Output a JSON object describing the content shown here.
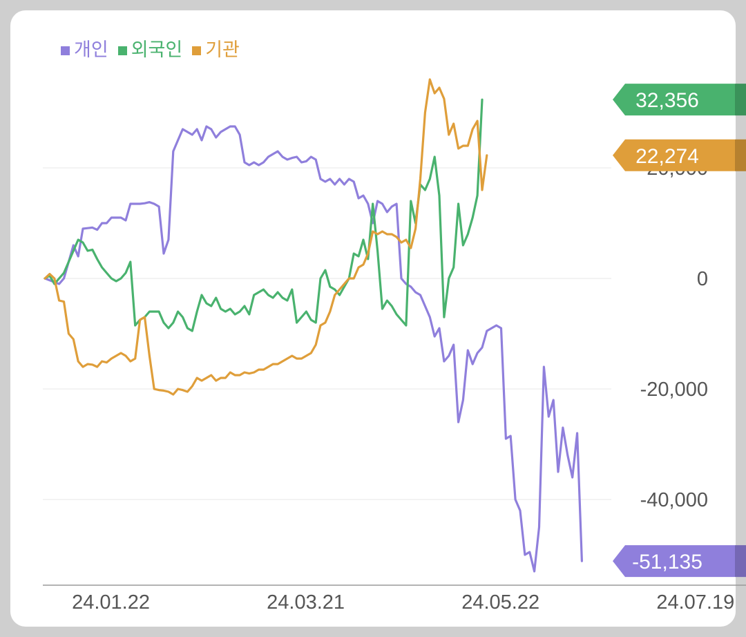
{
  "colors": {
    "individual": "#8f7fdc",
    "foreign": "#49b26e",
    "institution": "#df9e3a",
    "grid": "#ececec",
    "axis": "#9a9a9a",
    "tick_text": "#555555"
  },
  "legend": [
    {
      "key": "individual",
      "label": "개인"
    },
    {
      "key": "foreign",
      "label": "외국인"
    },
    {
      "key": "institution",
      "label": "기관"
    }
  ],
  "tags": [
    {
      "key": "foreign",
      "label": "32,356",
      "value": 32356
    },
    {
      "key": "institution",
      "label": "22,274",
      "value": 22274
    },
    {
      "key": "individual",
      "label": "-51,135",
      "value": -51135
    }
  ],
  "chart_data": {
    "type": "line",
    "xlabel": "",
    "ylabel": "",
    "ylim": [
      -54000,
      36000
    ],
    "yticks": [
      {
        "value": 20000,
        "label": "20,000"
      },
      {
        "value": 0,
        "label": "0"
      },
      {
        "value": -20000,
        "label": "-20,000"
      },
      {
        "value": -40000,
        "label": "-40,000"
      }
    ],
    "xticks": [
      {
        "index": 4,
        "label": "24.01.22"
      },
      {
        "index": 45,
        "label": "24.03.21"
      },
      {
        "index": 86,
        "label": "24.05.22"
      },
      {
        "index": 127,
        "label": "24.07.19"
      }
    ],
    "grid": true,
    "legend_position": "top-left",
    "n_points": 149,
    "series": [
      {
        "name": "개인",
        "key": "individual",
        "points": [
          [
            0,
            0
          ],
          [
            3,
            -1000
          ],
          [
            4,
            0
          ],
          [
            6,
            6000
          ],
          [
            7,
            4000
          ],
          [
            8,
            9000
          ],
          [
            10,
            9200
          ],
          [
            11,
            8800
          ],
          [
            12,
            10000
          ],
          [
            13,
            10000
          ],
          [
            14,
            11000
          ],
          [
            16,
            11000
          ],
          [
            17,
            10500
          ],
          [
            18,
            13500
          ],
          [
            20,
            13500
          ],
          [
            21,
            13600
          ],
          [
            22,
            13800
          ],
          [
            23,
            13500
          ],
          [
            24,
            13000
          ],
          [
            25,
            4500
          ],
          [
            26,
            7000
          ],
          [
            27,
            23000
          ],
          [
            28,
            25000
          ],
          [
            29,
            27000
          ],
          [
            31,
            26000
          ],
          [
            32,
            27000
          ],
          [
            33,
            25000
          ],
          [
            34,
            27500
          ],
          [
            35,
            27000
          ],
          [
            36,
            25500
          ],
          [
            37,
            26500
          ],
          [
            38,
            27000
          ],
          [
            39,
            27500
          ],
          [
            40,
            27500
          ],
          [
            41,
            26000
          ],
          [
            42,
            21000
          ],
          [
            43,
            20500
          ],
          [
            44,
            21000
          ],
          [
            45,
            20500
          ],
          [
            46,
            21000
          ],
          [
            47,
            22000
          ],
          [
            48,
            22500
          ],
          [
            49,
            23000
          ],
          [
            50,
            22000
          ],
          [
            51,
            21500
          ],
          [
            52,
            21800
          ],
          [
            53,
            22000
          ],
          [
            54,
            21000
          ],
          [
            55,
            21200
          ],
          [
            56,
            22000
          ],
          [
            57,
            21500
          ],
          [
            58,
            18000
          ],
          [
            59,
            17500
          ],
          [
            60,
            18000
          ],
          [
            61,
            17000
          ],
          [
            62,
            18000
          ],
          [
            63,
            17000
          ],
          [
            64,
            18000
          ],
          [
            65,
            17500
          ],
          [
            66,
            14500
          ],
          [
            67,
            15000
          ],
          [
            68,
            13500
          ],
          [
            69,
            10000
          ],
          [
            70,
            14000
          ],
          [
            71,
            13500
          ],
          [
            72,
            12000
          ],
          [
            73,
            13000
          ],
          [
            74,
            13500
          ],
          [
            75,
            0
          ],
          [
            76,
            -1000
          ],
          [
            77,
            -1500
          ],
          [
            78,
            -2500
          ],
          [
            79,
            -3000
          ],
          [
            80,
            -5000
          ],
          [
            81,
            -7000
          ],
          [
            82,
            -10500
          ],
          [
            83,
            -9000
          ],
          [
            84,
            -15000
          ],
          [
            85,
            -14000
          ],
          [
            86,
            -12000
          ],
          [
            87,
            -26000
          ],
          [
            88,
            -22000
          ],
          [
            89,
            -13000
          ],
          [
            90,
            -15500
          ],
          [
            91,
            -13500
          ],
          [
            92,
            -12500
          ],
          [
            93,
            -9500
          ],
          [
            94,
            -9000
          ],
          [
            95,
            -8500
          ],
          [
            96,
            -9000
          ],
          [
            97,
            -29000
          ],
          [
            98,
            -28500
          ],
          [
            99,
            -40000
          ],
          [
            100,
            -42000
          ],
          [
            101,
            -50000
          ],
          [
            102,
            -49500
          ],
          [
            103,
            -53000
          ],
          [
            104,
            -45000
          ],
          [
            105,
            -16000
          ],
          [
            106,
            -25000
          ],
          [
            107,
            -22000
          ],
          [
            108,
            -35000
          ],
          [
            109,
            -27000
          ],
          [
            110,
            -32000
          ],
          [
            111,
            -36000
          ],
          [
            112,
            -28000
          ],
          [
            113,
            -51135
          ]
        ]
      },
      {
        "name": "외국인",
        "key": "foreign",
        "points": [
          [
            0,
            0
          ],
          [
            1,
            500
          ],
          [
            2,
            -1000
          ],
          [
            3,
            0
          ],
          [
            4,
            1000
          ],
          [
            6,
            5000
          ],
          [
            7,
            7000
          ],
          [
            8,
            6500
          ],
          [
            9,
            5000
          ],
          [
            10,
            5200
          ],
          [
            11,
            3500
          ],
          [
            12,
            2000
          ],
          [
            13,
            1000
          ],
          [
            14,
            0
          ],
          [
            15,
            -500
          ],
          [
            16,
            0
          ],
          [
            17,
            1000
          ],
          [
            18,
            3000
          ],
          [
            19,
            -8500
          ],
          [
            20,
            -7500
          ],
          [
            21,
            -7000
          ],
          [
            22,
            -6000
          ],
          [
            24,
            -6000
          ],
          [
            25,
            -8000
          ],
          [
            26,
            -9000
          ],
          [
            27,
            -8000
          ],
          [
            28,
            -6000
          ],
          [
            29,
            -7000
          ],
          [
            30,
            -9000
          ],
          [
            31,
            -9500
          ],
          [
            32,
            -6000
          ],
          [
            33,
            -3000
          ],
          [
            34,
            -4500
          ],
          [
            35,
            -5000
          ],
          [
            36,
            -3500
          ],
          [
            37,
            -5500
          ],
          [
            38,
            -6000
          ],
          [
            39,
            -5500
          ],
          [
            40,
            -6500
          ],
          [
            41,
            -6000
          ],
          [
            42,
            -5000
          ],
          [
            43,
            -6500
          ],
          [
            44,
            -3000
          ],
          [
            45,
            -2500
          ],
          [
            46,
            -2000
          ],
          [
            47,
            -3000
          ],
          [
            48,
            -3500
          ],
          [
            49,
            -2500
          ],
          [
            50,
            -3500
          ],
          [
            51,
            -4000
          ],
          [
            52,
            -2000
          ],
          [
            53,
            -8000
          ],
          [
            54,
            -7000
          ],
          [
            55,
            -6000
          ],
          [
            56,
            -7500
          ],
          [
            57,
            -8000
          ],
          [
            58,
            0
          ],
          [
            59,
            1500
          ],
          [
            60,
            -1500
          ],
          [
            61,
            -2000
          ],
          [
            62,
            -3000
          ],
          [
            63,
            -1500
          ],
          [
            64,
            0
          ],
          [
            65,
            4500
          ],
          [
            66,
            4000
          ],
          [
            67,
            7000
          ],
          [
            68,
            3500
          ],
          [
            69,
            13500
          ],
          [
            70,
            5000
          ],
          [
            71,
            -5500
          ],
          [
            72,
            -4000
          ],
          [
            73,
            -5000
          ],
          [
            74,
            -6500
          ],
          [
            75,
            -7500
          ],
          [
            76,
            -8500
          ],
          [
            77,
            14000
          ],
          [
            78,
            10000
          ],
          [
            79,
            17000
          ],
          [
            80,
            16000
          ],
          [
            81,
            18000
          ],
          [
            82,
            22000
          ],
          [
            83,
            15000
          ],
          [
            84,
            -7000
          ],
          [
            85,
            0
          ],
          [
            86,
            2000
          ],
          [
            87,
            13500
          ],
          [
            88,
            6000
          ],
          [
            89,
            8000
          ],
          [
            90,
            11000
          ],
          [
            91,
            15000
          ],
          [
            92,
            32356
          ]
        ]
      },
      {
        "name": "기관",
        "key": "institution",
        "points": [
          [
            0,
            0
          ],
          [
            1,
            800
          ],
          [
            2,
            0
          ],
          [
            3,
            -4000
          ],
          [
            4,
            -4200
          ],
          [
            5,
            -10000
          ],
          [
            6,
            -11000
          ],
          [
            7,
            -15000
          ],
          [
            8,
            -16000
          ],
          [
            9,
            -15500
          ],
          [
            10,
            -15600
          ],
          [
            11,
            -16000
          ],
          [
            12,
            -15000
          ],
          [
            13,
            -15200
          ],
          [
            14,
            -14500
          ],
          [
            15,
            -14000
          ],
          [
            16,
            -13500
          ],
          [
            17,
            -14000
          ],
          [
            18,
            -15000
          ],
          [
            19,
            -14500
          ],
          [
            20,
            -7500
          ],
          [
            21,
            -7000
          ],
          [
            22,
            -14000
          ],
          [
            23,
            -20000
          ],
          [
            24,
            -20200
          ],
          [
            25,
            -20300
          ],
          [
            26,
            -20500
          ],
          [
            27,
            -21000
          ],
          [
            28,
            -20000
          ],
          [
            29,
            -20200
          ],
          [
            30,
            -20500
          ],
          [
            31,
            -19500
          ],
          [
            32,
            -18000
          ],
          [
            33,
            -18500
          ],
          [
            34,
            -18000
          ],
          [
            35,
            -17500
          ],
          [
            36,
            -18500
          ],
          [
            37,
            -18000
          ],
          [
            38,
            -18000
          ],
          [
            39,
            -17000
          ],
          [
            40,
            -17500
          ],
          [
            41,
            -17500
          ],
          [
            42,
            -17000
          ],
          [
            43,
            -17200
          ],
          [
            44,
            -17000
          ],
          [
            45,
            -16500
          ],
          [
            46,
            -16500
          ],
          [
            47,
            -16000
          ],
          [
            48,
            -15500
          ],
          [
            49,
            -15500
          ],
          [
            50,
            -15000
          ],
          [
            51,
            -14500
          ],
          [
            52,
            -14000
          ],
          [
            53,
            -14500
          ],
          [
            54,
            -14500
          ],
          [
            55,
            -14000
          ],
          [
            56,
            -13500
          ],
          [
            57,
            -12000
          ],
          [
            58,
            -8500
          ],
          [
            59,
            -8000
          ],
          [
            60,
            -6000
          ],
          [
            61,
            -3000
          ],
          [
            62,
            -2000
          ],
          [
            63,
            -1000
          ],
          [
            64,
            0
          ],
          [
            65,
            0
          ],
          [
            66,
            2000
          ],
          [
            67,
            2500
          ],
          [
            68,
            4500
          ],
          [
            69,
            8500
          ],
          [
            70,
            8000
          ],
          [
            71,
            8500
          ],
          [
            72,
            8000
          ],
          [
            73,
            8000
          ],
          [
            74,
            7500
          ],
          [
            75,
            6500
          ],
          [
            76,
            7000
          ],
          [
            77,
            5500
          ],
          [
            78,
            9000
          ],
          [
            79,
            18000
          ],
          [
            80,
            30000
          ],
          [
            81,
            36000
          ],
          [
            82,
            33500
          ],
          [
            83,
            34500
          ],
          [
            84,
            32500
          ],
          [
            85,
            26000
          ],
          [
            86,
            28000
          ],
          [
            87,
            23500
          ],
          [
            88,
            24000
          ],
          [
            89,
            24000
          ],
          [
            90,
            27000
          ],
          [
            91,
            28500
          ],
          [
            92,
            16000
          ],
          [
            93,
            22274
          ]
        ]
      }
    ]
  }
}
